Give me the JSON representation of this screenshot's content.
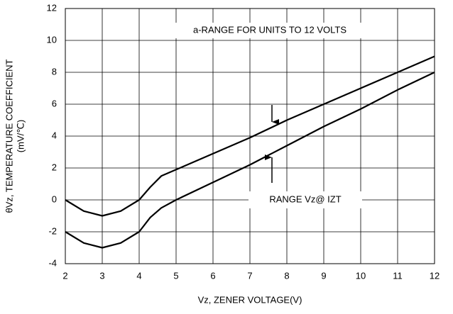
{
  "chart_data": {
    "type": "line",
    "xlabel": "Vz, ZENER VOLTAGE(V)",
    "ylabel": "θVz, TEMPERATURE COEFFICIENT",
    "ylabel_unit": "(mV/℃)",
    "annotations": [
      "a-RANGE FOR UNITS TO 12 VOLTS",
      "RANGE Vz@ IZT"
    ],
    "series": [
      {
        "color": "#000000",
        "x": [
          2,
          2.5,
          3,
          3.5,
          4,
          4.3,
          4.6,
          5,
          6,
          7,
          8,
          9,
          10,
          11,
          12
        ],
        "values": [
          0,
          -0.7,
          -1,
          -0.7,
          0,
          0.8,
          1.5,
          1.9,
          2.9,
          3.9,
          5,
          6,
          7,
          8,
          9
        ]
      },
      {
        "color": "#000000",
        "x": [
          2,
          2.5,
          3,
          3.5,
          4,
          4.3,
          4.6,
          5,
          6,
          7,
          8,
          9,
          10,
          11,
          12
        ],
        "values": [
          -2,
          -2.7,
          -3,
          -2.7,
          -2,
          -1.1,
          -0.5,
          0,
          1.1,
          2.2,
          3.4,
          4.6,
          5.7,
          6.9,
          8
        ]
      }
    ],
    "xlim": [
      2,
      12
    ],
    "xticks": [
      2,
      3,
      4,
      5,
      6,
      7,
      8,
      9,
      10,
      11,
      12
    ],
    "ylim": [
      -4,
      12
    ],
    "yticks": [
      -4,
      -2,
      0,
      2,
      4,
      6,
      8,
      10,
      12
    ],
    "grid": true
  }
}
